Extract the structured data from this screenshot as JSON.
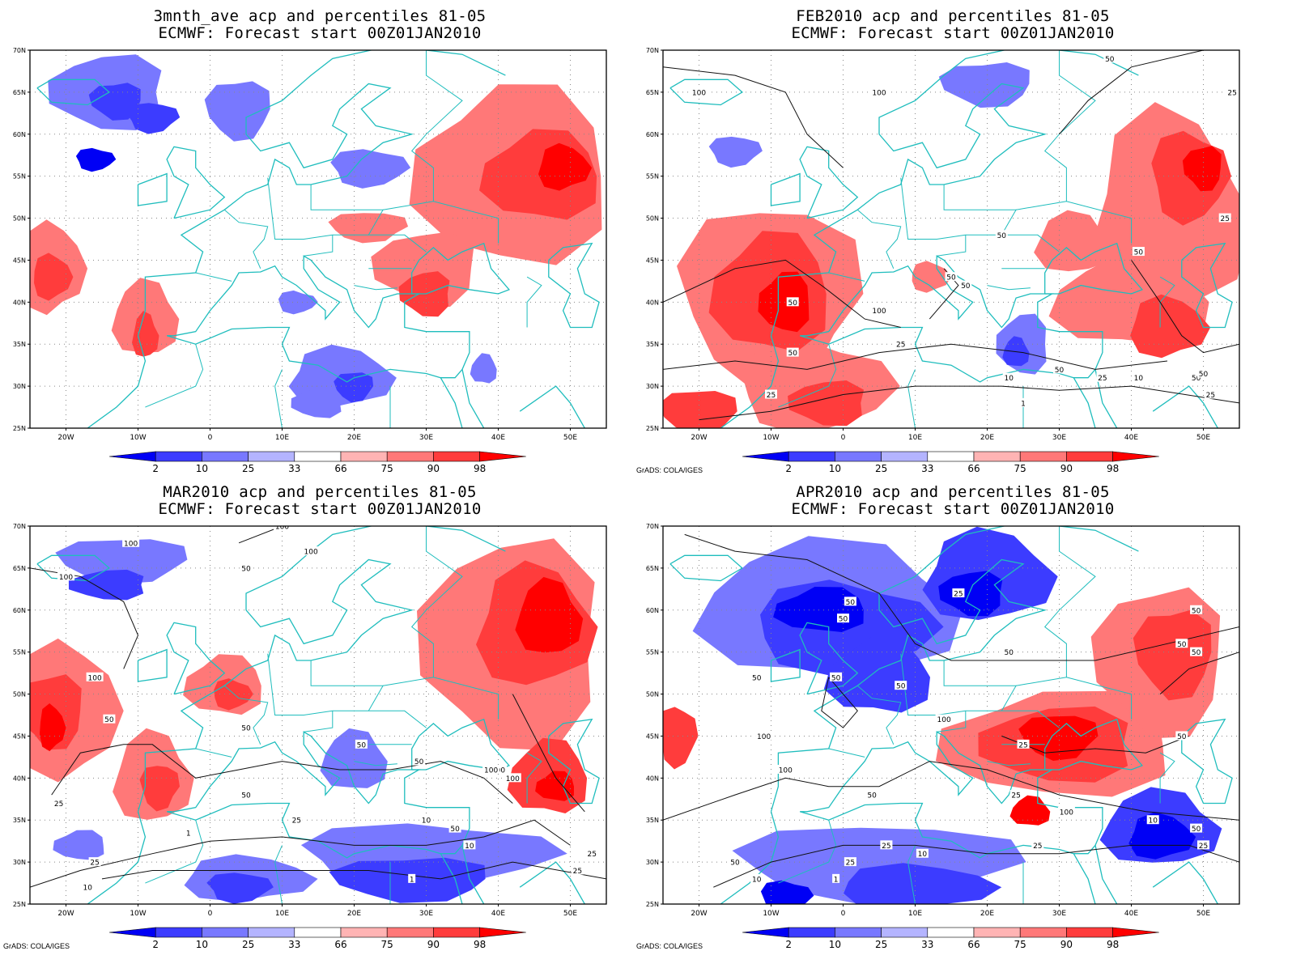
{
  "panels": [
    {
      "title": "3mnth_ave acp and percentiles 81-05",
      "subtitle": "ECMWF: Forecast start 00Z01JAN2010",
      "credit": "",
      "contour_labels": []
    },
    {
      "title": "FEB2010 acp and percentiles 81-05",
      "subtitle": "ECMWF: Forecast start 00Z01JAN2010",
      "credit": "GrADS: COLA/IGES",
      "contour_labels": [
        "100",
        "100",
        "50",
        "25",
        "25",
        "50",
        "50",
        "50",
        "50",
        "100",
        "50",
        "50",
        "25",
        "25",
        "10",
        "50",
        "10",
        "50",
        "25",
        "1",
        "50",
        "25"
      ]
    },
    {
      "title": "MAR2010 acp and percentiles 81-05",
      "subtitle": "ECMWF: Forecast start 00Z01JAN2010",
      "credit": "GrADS: COLA/IGES",
      "contour_labels": [
        "100",
        "100",
        "100",
        "50",
        "100",
        "100",
        "50",
        "50",
        "25",
        "100",
        "50",
        "50",
        "100",
        "50",
        "100",
        "25",
        "10",
        "25",
        "10",
        "1",
        "1",
        "50",
        "25",
        "25",
        "10"
      ]
    },
    {
      "title": "APR2010 acp and percentiles 81-05",
      "subtitle": "ECMWF: Forecast start 00Z01JAN2010",
      "credit": "GrADS: COLA/IGES",
      "contour_labels": [
        "50",
        "50",
        "25",
        "50",
        "50",
        "50",
        "50",
        "50",
        "100",
        "50",
        "50",
        "50",
        "25",
        "100",
        "100",
        "100",
        "50",
        "25",
        "25",
        "25",
        "25",
        "50",
        "10",
        "10",
        "1",
        "10",
        "50",
        "25"
      ]
    }
  ],
  "map": {
    "lon_ticks": [
      "20W",
      "10W",
      "0",
      "10E",
      "20E",
      "30E",
      "40E",
      "50E"
    ],
    "lat_ticks": [
      "70N",
      "65N",
      "60N",
      "55N",
      "50N",
      "45N",
      "40N",
      "35N",
      "30N",
      "25N"
    ],
    "lon_range": [
      -25,
      55
    ],
    "lat_range": [
      25,
      70
    ]
  },
  "colorbar": {
    "labels": [
      "2",
      "10",
      "25",
      "33",
      "66",
      "75",
      "90",
      "98"
    ],
    "colors": [
      "#0000f5",
      "#3c3cff",
      "#7878ff",
      "#b4b4ff",
      "#ffffff",
      "#ffb4b4",
      "#ff7878",
      "#ff3c3c",
      "#ff0000"
    ]
  }
}
